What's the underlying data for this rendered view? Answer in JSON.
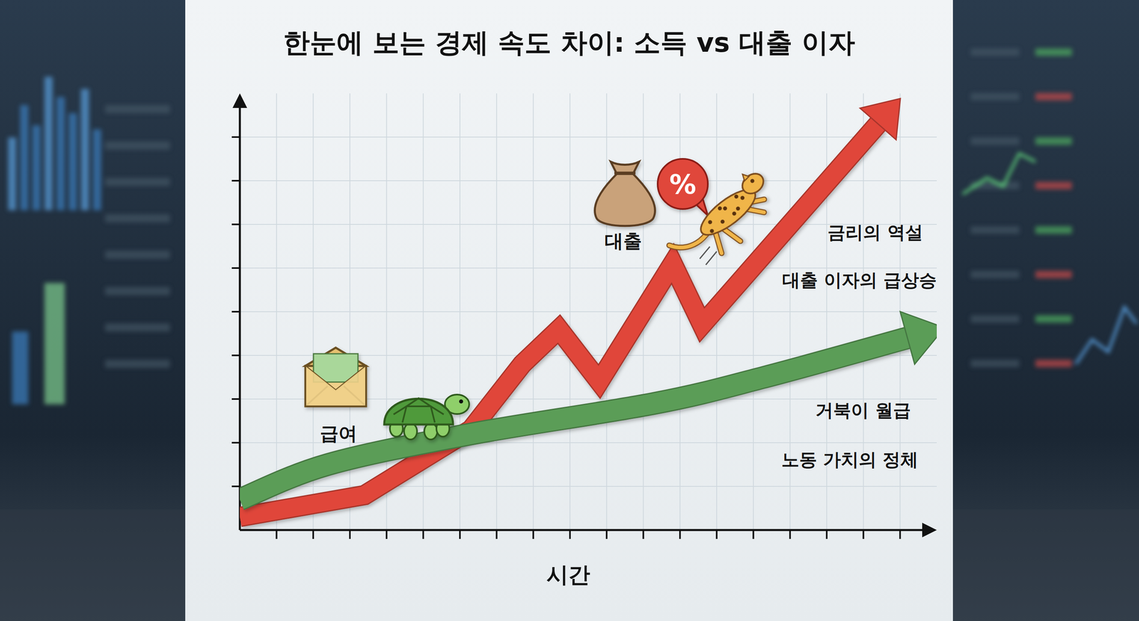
{
  "chart_data": {
    "type": "line",
    "title": "한눈에 보는 경제 속도 차이: 소득 vs 대출 이자",
    "x_label": "시간",
    "xlim": [
      0,
      19
    ],
    "ylim": [
      0,
      10
    ],
    "xticks": [
      1,
      2,
      3,
      4,
      5,
      6,
      7,
      8,
      9,
      10,
      11,
      12,
      13,
      14,
      15,
      16,
      17,
      18
    ],
    "yticks": [
      1,
      2,
      3,
      4,
      5,
      6,
      7,
      8,
      9
    ],
    "grid": true,
    "tick_labels": false,
    "series": [
      {
        "name": "대출",
        "color": "#e0463a",
        "line_style": "solid",
        "x": [
          0,
          3.4,
          6.3,
          7.7,
          8.7,
          9.8,
          11.8,
          12.6,
          17.4
        ],
        "values": [
          0.3,
          0.8,
          2.3,
          3.8,
          4.6,
          3.4,
          6.1,
          4.7,
          9.3
        ],
        "symbol": "%",
        "annotations": [
          "금리의 역설",
          "대출 이자의 급상승"
        ]
      },
      {
        "name": "급여",
        "color": "#5b9d57",
        "line_style": "solid",
        "x": [
          0,
          2.4,
          6.3,
          11.3,
          14.3,
          18.2
        ],
        "values": [
          0.7,
          1.5,
          2.2,
          2.9,
          3.5,
          4.4
        ],
        "annotations": [
          "거북이 월급",
          "노동 가치의 정체"
        ]
      }
    ]
  }
}
